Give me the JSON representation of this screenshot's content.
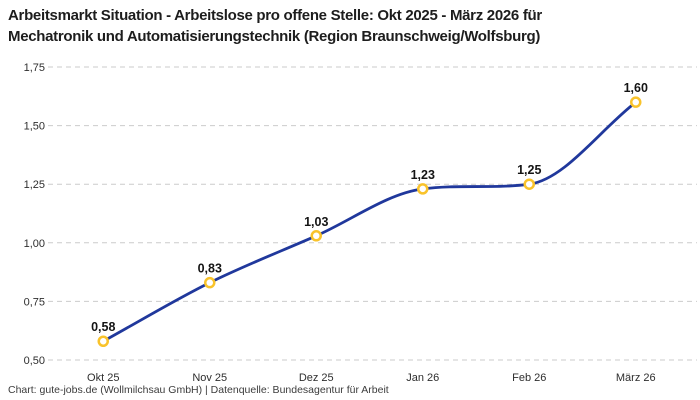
{
  "title_lines": [
    "Arbeitsmarkt Situation - Arbeitslose pro offene Stelle: Okt 2025 - März 2026 für",
    "Mechatronik und Automatisierungstechnik (Region Braunschweig/Wolfsburg)"
  ],
  "footer": "Chart: gute-jobs.de (Wollmilchsau GmbH) | Datenquelle: Bundesagentur für Arbeit",
  "colors": {
    "line": "#20389c",
    "marker_ring": "#f9c32b",
    "marker_fill": "#ffffff",
    "grid": "#cbcbcb",
    "title_text": "#1d1d1d",
    "axis_text": "#2e2e2e",
    "value_label_text": "#141414",
    "footer_text": "#3c3c3c",
    "background": "#ffffff"
  },
  "chart_data": {
    "type": "line",
    "title": "Arbeitsmarkt Situation - Arbeitslose pro offene Stelle: Okt 2025 - März 2026 für Mechatronik und Automatisierungstechnik (Region Braunschweig/Wolfsburg)",
    "categories": [
      "Okt 25",
      "Nov 25",
      "Dez 25",
      "Jan 26",
      "Feb 26",
      "März 26"
    ],
    "values": [
      0.58,
      0.83,
      1.03,
      1.23,
      1.25,
      1.6
    ],
    "value_labels": [
      "0,58",
      "0,83",
      "1,03",
      "1,23",
      "1,25",
      "1,60"
    ],
    "xlabel": "",
    "ylabel": "",
    "ylim": [
      0.5,
      1.75
    ],
    "yticks": [
      0.5,
      0.75,
      1.0,
      1.25,
      1.5,
      1.75
    ],
    "ytick_labels": [
      "0,50",
      "0,75",
      "1,00",
      "1,25",
      "1,50",
      "1,75"
    ],
    "grid": "horizontal-dashed",
    "legend": "none",
    "curve": "monotone",
    "markers": "open-circle"
  }
}
